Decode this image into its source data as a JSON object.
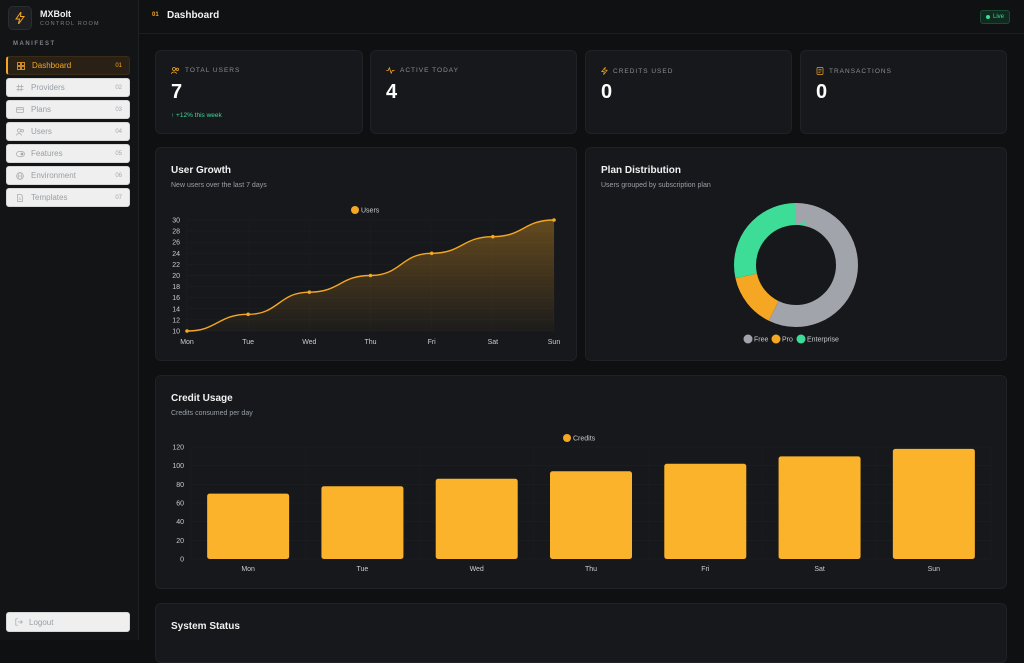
{
  "app": {
    "name": "MXBolt",
    "subtitle": "CONTROL ROOM"
  },
  "sidebar": {
    "section_label": "MANIFEST",
    "items": [
      {
        "label": "Dashboard",
        "num": "01",
        "icon": "grid-icon",
        "active": true
      },
      {
        "label": "Providers",
        "num": "02",
        "icon": "hash-icon"
      },
      {
        "label": "Plans",
        "num": "03",
        "icon": "card-icon"
      },
      {
        "label": "Users",
        "num": "04",
        "icon": "users-icon"
      },
      {
        "label": "Features",
        "num": "05",
        "icon": "toggle-icon"
      },
      {
        "label": "Environment",
        "num": "06",
        "icon": "globe-icon"
      },
      {
        "label": "Templates",
        "num": "07",
        "icon": "file-icon"
      }
    ],
    "logout": "Logout"
  },
  "header": {
    "num": "01",
    "title": "Dashboard",
    "status": "Live"
  },
  "stats": [
    {
      "label": "TOTAL USERS",
      "value": "7",
      "delta": "↑ +12% this week",
      "icon": "users-icon"
    },
    {
      "label": "ACTIVE TODAY",
      "value": "4",
      "icon": "activity-icon"
    },
    {
      "label": "CREDITS USED",
      "value": "0",
      "icon": "bolt-icon"
    },
    {
      "label": "TRANSACTIONS",
      "value": "0",
      "icon": "receipt-icon"
    }
  ],
  "cards": {
    "user_growth": {
      "title": "User Growth",
      "subtitle": "New users over the last 7 days"
    },
    "plan_distribution": {
      "title": "Plan Distribution",
      "subtitle": "Users grouped by subscription plan"
    },
    "credit_usage": {
      "title": "Credit Usage",
      "subtitle": "Credits consumed per day"
    },
    "system_status": {
      "title": "System Status"
    }
  },
  "colors": {
    "accent": "#f5a623",
    "bar": "#fbb32b",
    "free": "#a1a4aa",
    "pro": "#f5a623",
    "enterprise": "#3ddc97",
    "live": "#3ddc97"
  },
  "chart_data": [
    {
      "type": "area",
      "categories": [
        "Mon",
        "Tue",
        "Wed",
        "Thu",
        "Fri",
        "Sat",
        "Sun"
      ],
      "series": [
        {
          "name": "Users",
          "values": [
            10,
            13,
            17,
            20,
            24,
            27,
            30
          ]
        }
      ],
      "yticks": [
        10,
        12,
        14,
        16,
        18,
        20,
        22,
        24,
        26,
        28,
        30
      ],
      "ylim": [
        10,
        30
      ],
      "legend": "top-center"
    },
    {
      "type": "pie",
      "labels": [
        "Free",
        "Pro",
        "Enterprise"
      ],
      "values": [
        4,
        1,
        2
      ],
      "legend": "bottom"
    },
    {
      "type": "bar",
      "categories": [
        "Mon",
        "Tue",
        "Wed",
        "Thu",
        "Fri",
        "Sat",
        "Sun"
      ],
      "series": [
        {
          "name": "Credits",
          "values": [
            70,
            78,
            86,
            94,
            102,
            110,
            118
          ]
        }
      ],
      "yticks": [
        0,
        20,
        40,
        60,
        80,
        100,
        120
      ],
      "ylim": [
        0,
        120
      ],
      "legend": "top-center"
    }
  ]
}
